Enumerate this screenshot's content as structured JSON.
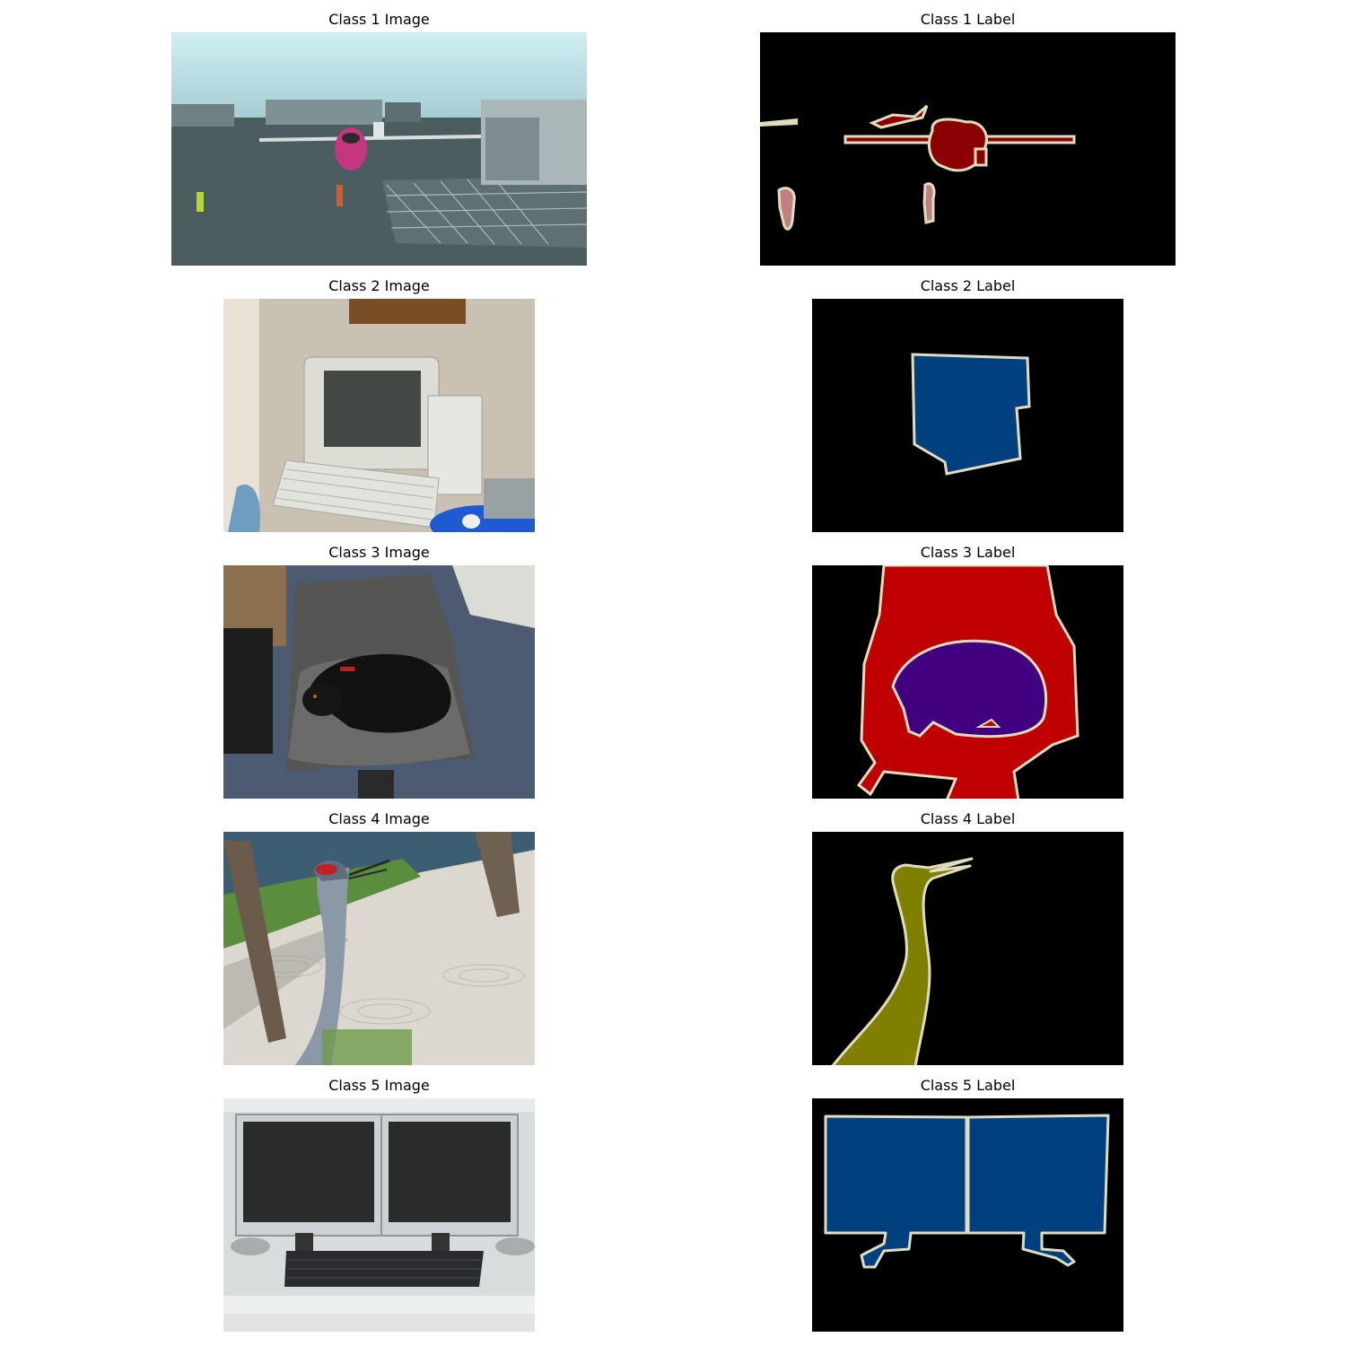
{
  "figure": {
    "rows": [
      {
        "image_title": "Class 1 Image",
        "label_title": "Class 1 Label",
        "image_content": "airplane-at-gate",
        "label_segments": [
          {
            "class": "aeroplane",
            "color": "#8b0000"
          },
          {
            "class": "person",
            "color": "#c08080"
          },
          {
            "class": "boundary",
            "color": "#e0dcc0"
          }
        ]
      },
      {
        "image_title": "Class 2 Image",
        "label_title": "Class 2 Label",
        "image_content": "crt-monitor-on-desk",
        "label_segments": [
          {
            "class": "tvmonitor",
            "color": "#00407f"
          },
          {
            "class": "boundary",
            "color": "#e0dcc0"
          }
        ]
      },
      {
        "image_title": "Class 3 Image",
        "label_title": "Class 3 Label",
        "image_content": "black-dog-on-chair",
        "label_segments": [
          {
            "class": "chair",
            "color": "#c00000"
          },
          {
            "class": "dog",
            "color": "#400080"
          },
          {
            "class": "boundary",
            "color": "#e0dcc0"
          }
        ]
      },
      {
        "image_title": "Class 4 Image",
        "label_title": "Class 4 Label",
        "image_content": "sandhill-crane",
        "label_segments": [
          {
            "class": "bird",
            "color": "#808000"
          },
          {
            "class": "boundary",
            "color": "#e0dcc0"
          }
        ]
      },
      {
        "image_title": "Class 5 Image",
        "label_title": "Class 5 Label",
        "image_content": "two-lcd-monitors",
        "label_segments": [
          {
            "class": "tvmonitor",
            "color": "#00407f"
          },
          {
            "class": "boundary",
            "color": "#e0dcc0"
          }
        ]
      }
    ]
  }
}
